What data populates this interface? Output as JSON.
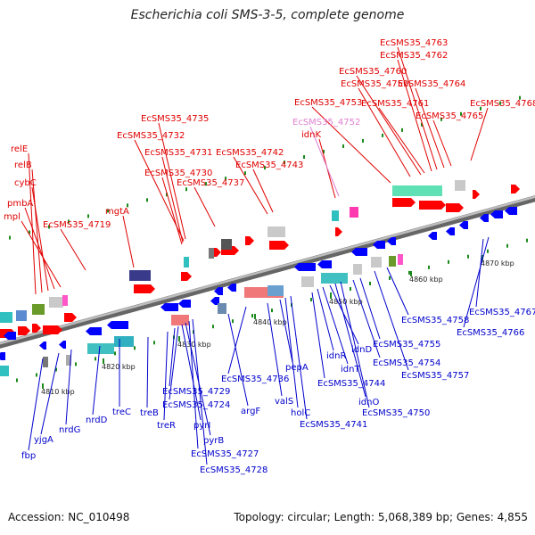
{
  "title": "Escherichia coli SMS-3-5, complete genome",
  "footer": {
    "accession": "Accession: NC_010498",
    "topology": "Topology: circular; Length: 5,068,389 bp; Genes: 4,855"
  },
  "colors": {
    "forward_label": "#e00000",
    "reverse_label": "#0000cc",
    "highlight_label": "#e080d0",
    "backbone": "#888888",
    "forward_gene": "#ff0000",
    "reverse_gene": "#0000ff"
  },
  "ticks": [
    "4810 kbp",
    "4820 kbp",
    "4830 kbp",
    "4840 kbp",
    "4850 kbp",
    "4860 kbp",
    "4870 kbp"
  ],
  "top_labels": [
    "relE",
    "relB",
    "cybC",
    "pmbA",
    "mpl",
    "EcSMS35_4719",
    "mgtA",
    "EcSMS35_4730",
    "EcSMS35_4731",
    "EcSMS35_4732",
    "EcSMS35_4735",
    "EcSMS35_4737",
    "EcSMS35_4742",
    "EcSMS35_4743",
    "idnK",
    "EcSMS35_4752",
    "EcSMS35_4753",
    "EcSMS35_4759",
    "EcSMS35_4760",
    "EcSMS35_4761",
    "EcSMS35_4762",
    "EcSMS35_4763",
    "EcSMS35_4764",
    "EcSMS35_4765",
    "EcSMS35_4768"
  ],
  "bottom_labels": [
    "fbp",
    "yjgA",
    "nrdG",
    "nrdD",
    "treC",
    "treB",
    "treR",
    "EcSMS35_4729",
    "EcSMS35_4724",
    "pyrI",
    "pyrB",
    "EcSMS35_4727",
    "EcSMS35_4728",
    "argF",
    "EcSMS35_4736",
    "valS",
    "pepA",
    "holC",
    "EcSMS35_4741",
    "EcSMS35_4744",
    "idnR",
    "idnT",
    "idnD",
    "idnO",
    "EcSMS35_4750",
    "EcSMS35_4754",
    "EcSMS35_4755",
    "EcSMS35_4757",
    "EcSMS35_4758",
    "EcSMS35_4767",
    "EcSMS35_4766"
  ]
}
